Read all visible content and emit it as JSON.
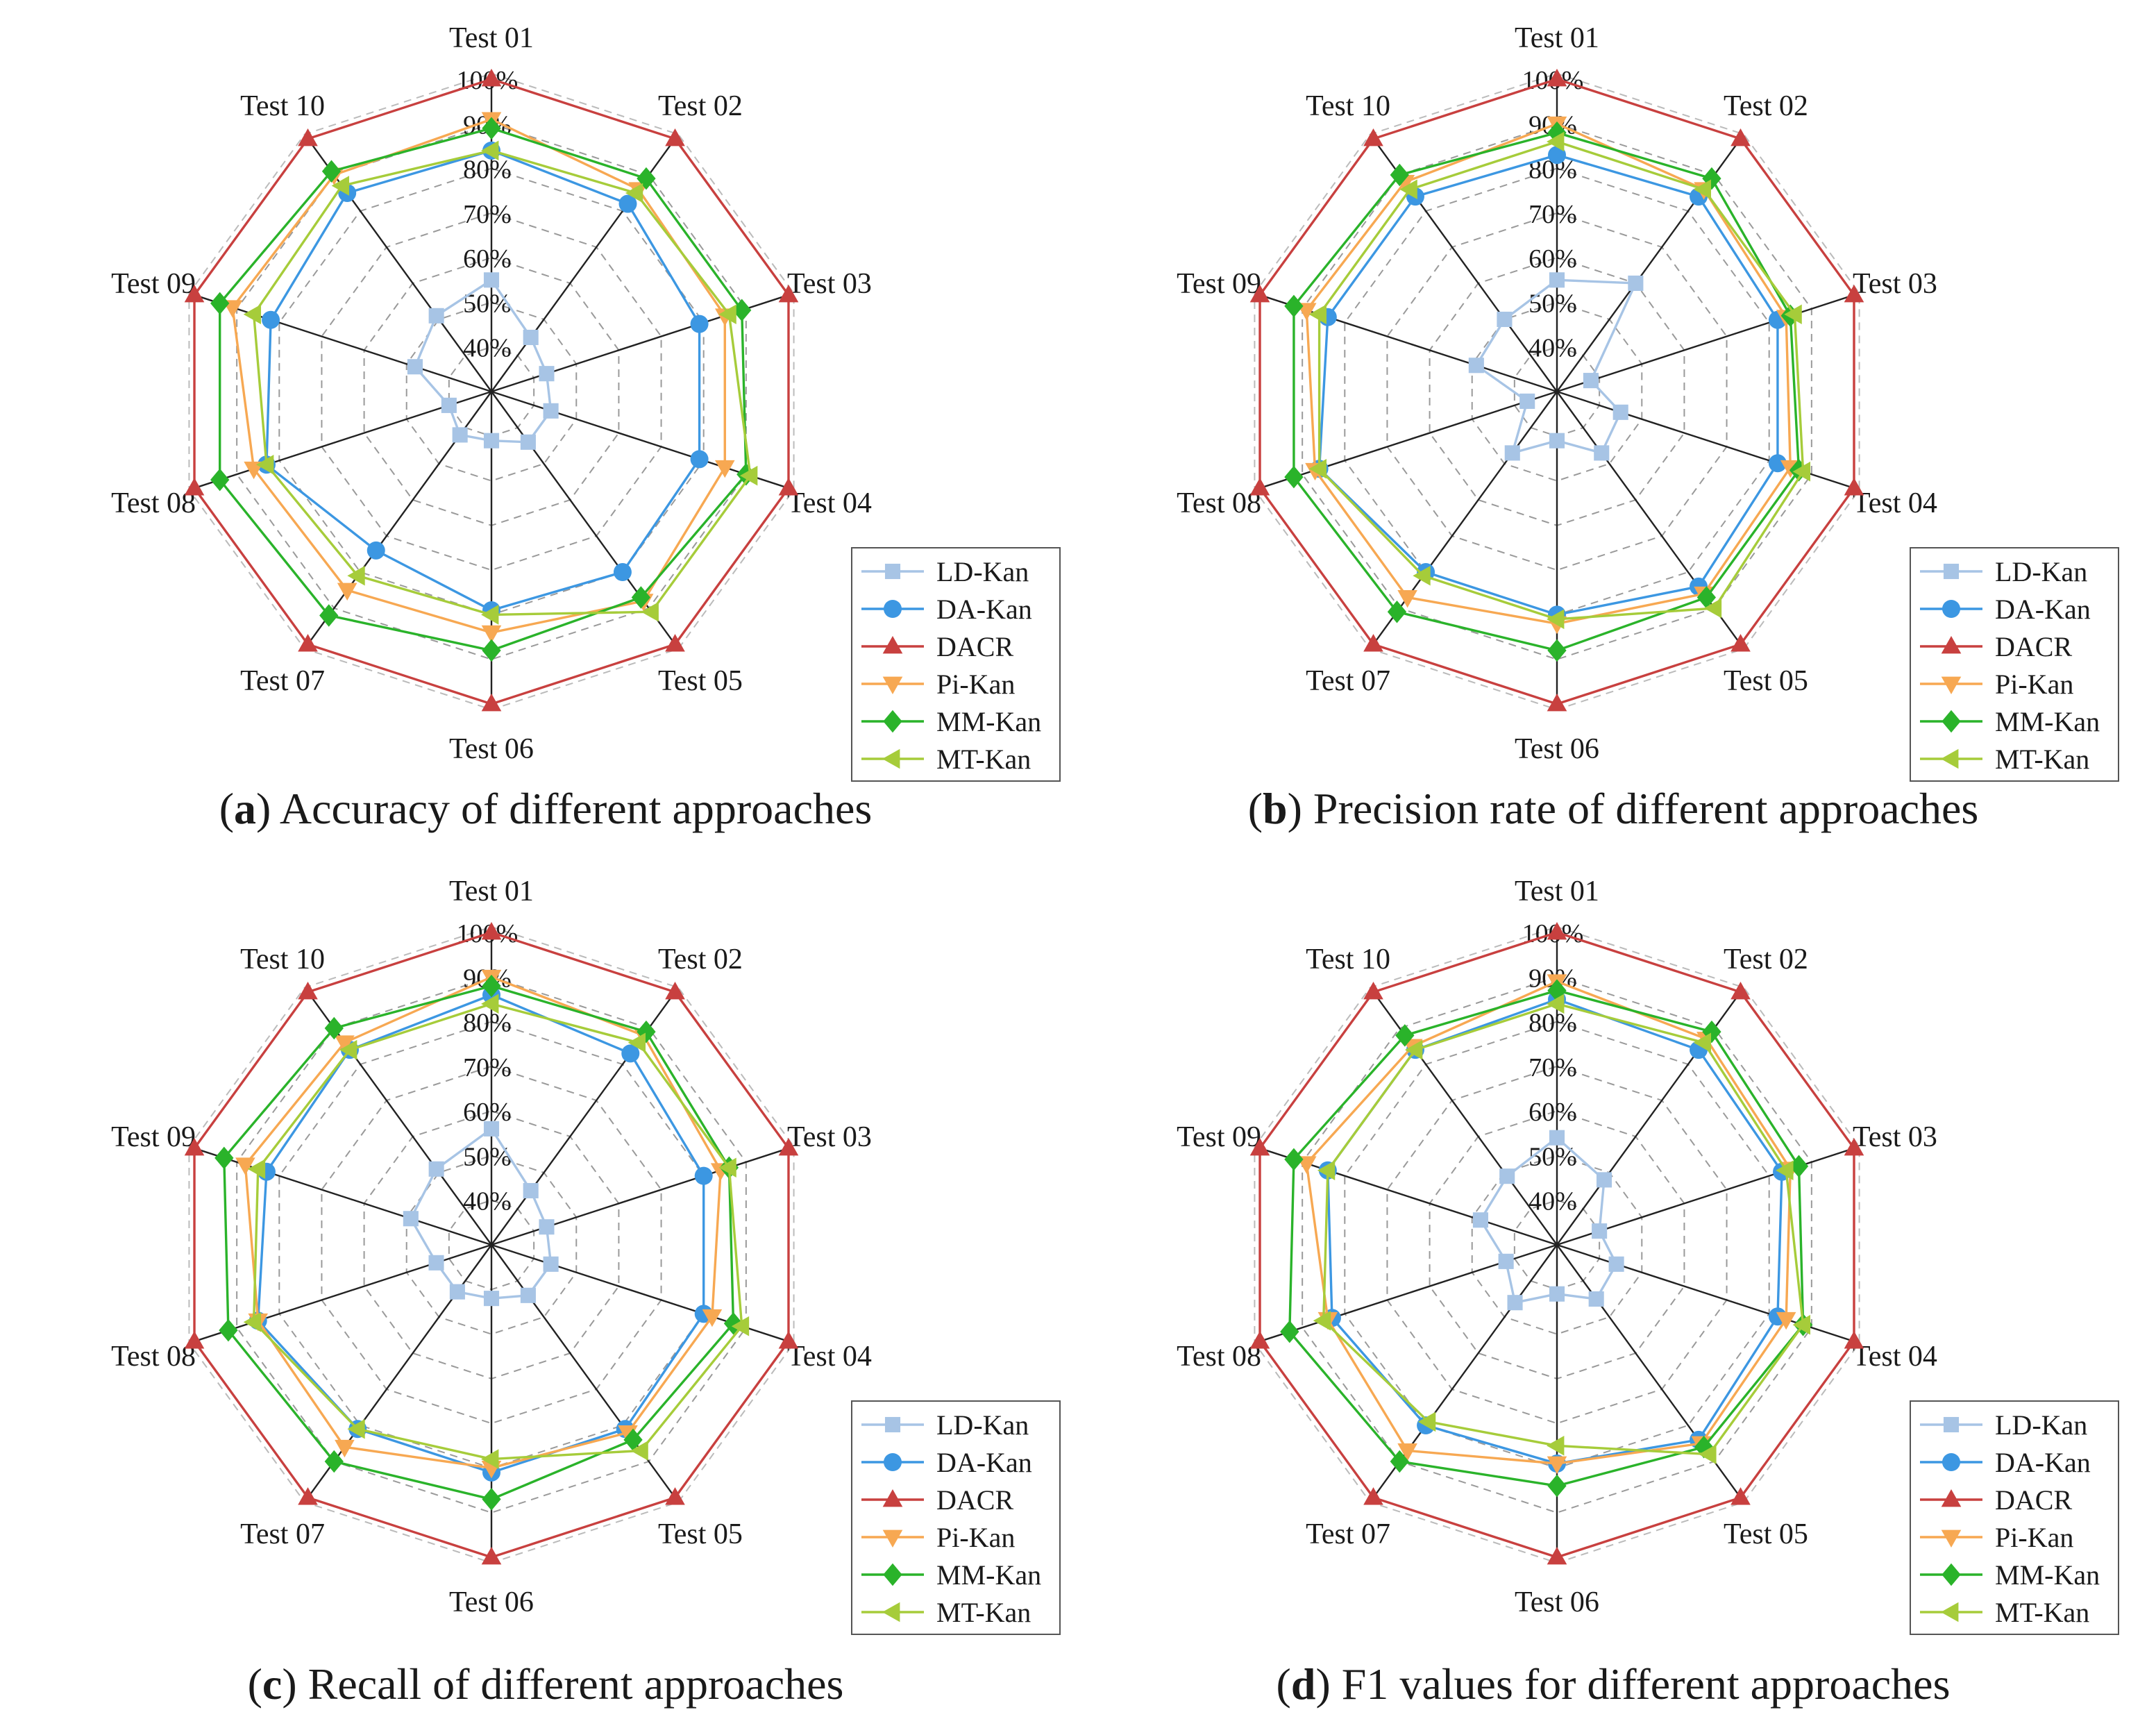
{
  "figure": {
    "series_names": [
      "LD-Kan",
      "DA-Kan",
      "DACR",
      "Pi-Kan",
      "MM-Kan",
      "MT-Kan"
    ],
    "series_colors": [
      "#a7c4e5",
      "#3c97e2",
      "#c8403f",
      "#f7a852",
      "#2ab32a",
      "#a6cc3a"
    ],
    "series_markers": [
      "square",
      "circle",
      "triangle-up",
      "triangle-down",
      "diamond",
      "triangle-left"
    ]
  },
  "chart_data": [
    {
      "type": "radar",
      "panel_letter": "a",
      "caption": "Accuracy of different approaches",
      "categories": [
        "Test 01",
        "Test 02",
        "Test 03",
        "Test 04",
        "Test 05",
        "Test 06",
        "Test 07",
        "Test 08",
        "Test 09",
        "Test 10"
      ],
      "radial_ticks": [
        "40%",
        "50%",
        "60%",
        "70%",
        "80%",
        "90%",
        "100%"
      ],
      "rlim": [
        30,
        100
      ],
      "series": [
        {
          "name": "LD-Kan",
          "values": [
            55,
            45,
            43,
            44,
            44,
            41,
            42,
            40,
            48,
            51
          ]
        },
        {
          "name": "DA-Kan",
          "values": [
            84,
            82,
            79,
            79,
            80,
            79,
            74,
            83,
            82,
            85
          ]
        },
        {
          "name": "DACR",
          "values": [
            100,
            100,
            100,
            100,
            100,
            100,
            100,
            100,
            100,
            100
          ]
        },
        {
          "name": "Pi-Kan",
          "values": [
            91,
            86,
            85,
            85,
            88,
            84,
            85,
            86,
            91,
            90
          ]
        },
        {
          "name": "MM-Kan",
          "values": [
            89,
            89,
            89,
            90,
            87,
            88,
            92,
            94,
            94,
            91
          ]
        },
        {
          "name": "MT-Kan",
          "values": [
            84,
            85,
            86,
            91,
            91,
            80,
            81,
            83,
            86,
            87
          ]
        }
      ]
    },
    {
      "type": "radar",
      "panel_letter": "b",
      "caption": "Precision rate of different approaches",
      "categories": [
        "Test 01",
        "Test 02",
        "Test 03",
        "Test 04",
        "Test 05",
        "Test 06",
        "Test 07",
        "Test 08",
        "Test 09",
        "Test 10"
      ],
      "radial_ticks": [
        "40%",
        "50%",
        "60%",
        "70%",
        "80%",
        "90%",
        "100%"
      ],
      "rlim": [
        30,
        100
      ],
      "series": [
        {
          "name": "LD-Kan",
          "values": [
            55,
            60,
            38,
            45,
            47,
            41,
            47,
            37,
            49,
            50
          ]
        },
        {
          "name": "DA-Kan",
          "values": [
            83,
            84,
            82,
            82,
            84,
            80,
            80,
            86,
            84,
            84
          ]
        },
        {
          "name": "DACR",
          "values": [
            100,
            100,
            100,
            100,
            100,
            100,
            100,
            100,
            100,
            100
          ]
        },
        {
          "name": "Pi-Kan",
          "values": [
            90,
            86,
            84,
            85,
            86,
            82,
            87,
            87,
            89,
            88
          ]
        },
        {
          "name": "MM-Kan",
          "values": [
            88,
            89,
            85,
            87,
            87,
            88,
            91,
            92,
            92,
            90
          ]
        },
        {
          "name": "MT-Kan",
          "values": [
            86,
            86,
            86,
            88,
            90,
            81,
            81,
            86,
            86,
            86
          ]
        }
      ]
    },
    {
      "type": "radar",
      "panel_letter": "c",
      "caption": "Recall of different approaches",
      "categories": [
        "Test 01",
        "Test 02",
        "Test 03",
        "Test 04",
        "Test 05",
        "Test 06",
        "Test 07",
        "Test 08",
        "Test 09",
        "Test 10"
      ],
      "radial_ticks": [
        "40%",
        "50%",
        "60%",
        "70%",
        "80%",
        "90%",
        "100%"
      ],
      "rlim": [
        30,
        100
      ],
      "series": [
        {
          "name": "LD-Kan",
          "values": [
            56,
            45,
            43,
            44,
            44,
            42,
            43,
            43,
            49,
            51
          ]
        },
        {
          "name": "DA-Kan",
          "values": [
            86,
            83,
            80,
            80,
            81,
            81,
            81,
            85,
            83,
            84
          ]
        },
        {
          "name": "DACR",
          "values": [
            100,
            100,
            100,
            100,
            100,
            100,
            100,
            100,
            100,
            100
          ]
        },
        {
          "name": "Pi-Kan",
          "values": [
            90,
            88,
            84,
            82,
            82,
            80,
            86,
            85,
            88,
            86
          ]
        },
        {
          "name": "MM-Kan",
          "values": [
            88,
            89,
            86,
            87,
            84,
            87,
            90,
            92,
            93,
            90
          ]
        },
        {
          "name": "MT-Kan",
          "values": [
            84,
            86,
            86,
            89,
            87,
            78,
            81,
            86,
            85,
            84
          ]
        }
      ]
    },
    {
      "type": "radar",
      "panel_letter": "d",
      "caption": "F1 values for different approaches",
      "categories": [
        "Test 01",
        "Test 02",
        "Test 03",
        "Test 04",
        "Test 05",
        "Test 06",
        "Test 07",
        "Test 08",
        "Test 09",
        "Test 10"
      ],
      "radial_ticks": [
        "40%",
        "50%",
        "60%",
        "70%",
        "80%",
        "90%",
        "100%"
      ],
      "rlim": [
        30,
        100
      ],
      "series": [
        {
          "name": "LD-Kan",
          "values": [
            54,
            48,
            40,
            44,
            45,
            41,
            46,
            42,
            48,
            49
          ]
        },
        {
          "name": "DA-Kan",
          "values": [
            85,
            84,
            83,
            82,
            84,
            79,
            80,
            83,
            84,
            84
          ]
        },
        {
          "name": "DACR",
          "values": [
            100,
            100,
            100,
            100,
            100,
            100,
            100,
            100,
            100,
            100
          ]
        },
        {
          "name": "Pi-Kan",
          "values": [
            89,
            87,
            85,
            84,
            85,
            79,
            87,
            84,
            89,
            85
          ]
        },
        {
          "name": "MM-Kan",
          "values": [
            87,
            89,
            87,
            88,
            86,
            84,
            90,
            93,
            92,
            88
          ]
        },
        {
          "name": "MT-Kan",
          "values": [
            84,
            86,
            84,
            88,
            88,
            75,
            79,
            85,
            84,
            84
          ]
        }
      ]
    }
  ]
}
